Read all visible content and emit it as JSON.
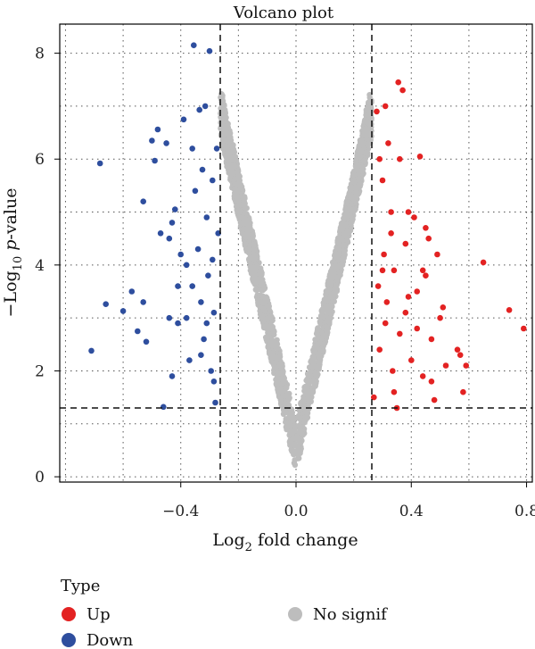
{
  "chart_data": {
    "type": "scatter",
    "title": "Volcano plot",
    "xlabel": {
      "prefix": "Log",
      "sub": "2",
      "suffix": " fold change"
    },
    "ylabel": {
      "prefix": "−Log",
      "sub": "10",
      "italic": "p",
      "suffix": "-value"
    },
    "xlim": [
      -0.82,
      0.82
    ],
    "ylim": [
      -0.1,
      8.55
    ],
    "xticks": [
      -0.4,
      0.0,
      0.4,
      0.8
    ],
    "xtick_labels": [
      "−0.4",
      "0.0",
      "0.4",
      "0.8"
    ],
    "yticks": [
      0,
      2,
      4,
      6,
      8
    ],
    "ytick_labels": [
      "0",
      "2",
      "4",
      "6",
      "8"
    ],
    "grid": true,
    "thresholds": {
      "fc_low": -0.263,
      "fc_high": 0.263,
      "p_line": 1.3
    },
    "legend": {
      "title": "Type",
      "position": "bottom",
      "items": [
        {
          "label": "Up",
          "color": "#e32222"
        },
        {
          "label": "Down",
          "color": "#2e4e9e"
        },
        {
          "label": "No signif",
          "color": "#bdbdbd"
        }
      ]
    },
    "series": [
      {
        "name": "Down",
        "color": "#2e4e9e",
        "points": [
          [
            -0.71,
            2.38
          ],
          [
            -0.68,
            5.92
          ],
          [
            -0.66,
            3.26
          ],
          [
            -0.6,
            3.13
          ],
          [
            -0.57,
            3.5
          ],
          [
            -0.55,
            2.75
          ],
          [
            -0.53,
            3.3
          ],
          [
            -0.52,
            2.55
          ],
          [
            -0.5,
            6.35
          ],
          [
            -0.49,
            5.97
          ],
          [
            -0.48,
            6.56
          ],
          [
            -0.47,
            4.6
          ],
          [
            -0.46,
            1.32
          ],
          [
            -0.45,
            6.3
          ],
          [
            -0.44,
            4.5
          ],
          [
            -0.43,
            4.8
          ],
          [
            -0.42,
            5.05
          ],
          [
            -0.41,
            3.6
          ],
          [
            -0.4,
            4.2
          ],
          [
            -0.39,
            6.75
          ],
          [
            -0.38,
            3.0
          ],
          [
            -0.37,
            2.2
          ],
          [
            -0.36,
            6.2
          ],
          [
            -0.355,
            8.15
          ],
          [
            -0.35,
            5.4
          ],
          [
            -0.34,
            4.3
          ],
          [
            -0.335,
            6.93
          ],
          [
            -0.33,
            3.3
          ],
          [
            -0.325,
            5.8
          ],
          [
            -0.32,
            2.6
          ],
          [
            -0.315,
            7.0
          ],
          [
            -0.31,
            4.9
          ],
          [
            -0.305,
            3.8
          ],
          [
            -0.3,
            8.04
          ],
          [
            -0.295,
            2.0
          ],
          [
            -0.29,
            5.6
          ],
          [
            -0.285,
            3.1
          ],
          [
            -0.28,
            1.4
          ],
          [
            -0.275,
            6.2
          ],
          [
            -0.27,
            4.6
          ],
          [
            -0.53,
            5.2
          ],
          [
            -0.44,
            3.0
          ],
          [
            -0.41,
            2.9
          ],
          [
            -0.38,
            4.0
          ],
          [
            -0.36,
            3.6
          ],
          [
            -0.33,
            2.3
          ],
          [
            -0.31,
            2.9
          ],
          [
            -0.29,
            4.1
          ],
          [
            -0.285,
            1.8
          ],
          [
            -0.43,
            1.9
          ]
        ]
      },
      {
        "name": "Up",
        "color": "#e32222",
        "points": [
          [
            0.27,
            1.5
          ],
          [
            0.28,
            6.9
          ],
          [
            0.285,
            3.6
          ],
          [
            0.29,
            2.4
          ],
          [
            0.3,
            5.6
          ],
          [
            0.305,
            4.2
          ],
          [
            0.31,
            2.9
          ],
          [
            0.315,
            3.3
          ],
          [
            0.32,
            6.3
          ],
          [
            0.33,
            4.6
          ],
          [
            0.335,
            2.0
          ],
          [
            0.34,
            3.9
          ],
          [
            0.35,
            1.3
          ],
          [
            0.355,
            7.45
          ],
          [
            0.36,
            6.0
          ],
          [
            0.37,
            7.3
          ],
          [
            0.38,
            3.1
          ],
          [
            0.39,
            5.0
          ],
          [
            0.4,
            2.2
          ],
          [
            0.41,
            4.9
          ],
          [
            0.42,
            3.5
          ],
          [
            0.43,
            6.05
          ],
          [
            0.44,
            1.9
          ],
          [
            0.45,
            3.8
          ],
          [
            0.46,
            4.5
          ],
          [
            0.47,
            2.6
          ],
          [
            0.48,
            1.45
          ],
          [
            0.49,
            4.2
          ],
          [
            0.5,
            3.0
          ],
          [
            0.51,
            3.2
          ],
          [
            0.52,
            2.1
          ],
          [
            0.56,
            2.4
          ],
          [
            0.57,
            2.3
          ],
          [
            0.58,
            1.6
          ],
          [
            0.59,
            2.1
          ],
          [
            0.65,
            4.05
          ],
          [
            0.74,
            3.15
          ],
          [
            0.79,
            2.8
          ],
          [
            0.3,
            3.9
          ],
          [
            0.33,
            5.0
          ],
          [
            0.36,
            2.7
          ],
          [
            0.39,
            3.4
          ],
          [
            0.42,
            2.8
          ],
          [
            0.45,
            4.7
          ],
          [
            0.29,
            6.0
          ],
          [
            0.31,
            7.0
          ],
          [
            0.34,
            1.6
          ],
          [
            0.38,
            4.4
          ],
          [
            0.44,
            3.9
          ],
          [
            0.47,
            1.8
          ]
        ]
      }
    ],
    "no_signif": {
      "name": "No signif",
      "color": "#bdbdbd",
      "count": 2400,
      "x_range": [
        -0.262,
        0.262
      ],
      "vertex_y": 0.0,
      "max_y": 7.7
    }
  }
}
